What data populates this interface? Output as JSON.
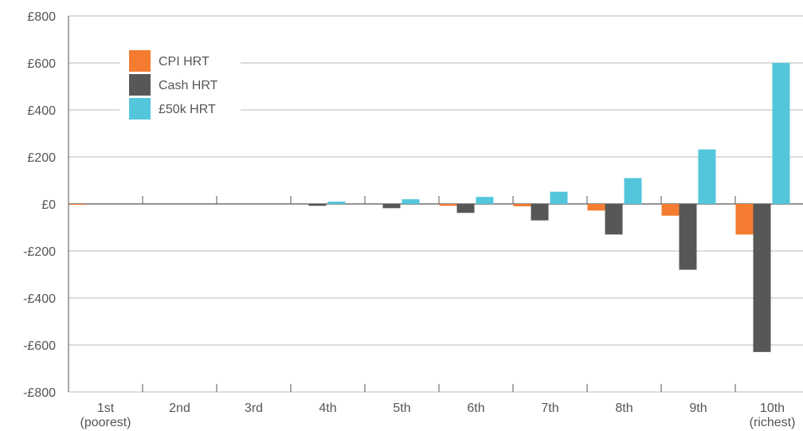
{
  "chart_data": {
    "type": "bar",
    "title": "",
    "xlabel": "",
    "ylabel": "",
    "ylim": [
      -800,
      800
    ],
    "yticks": [
      {
        "value": 800,
        "label": "£800"
      },
      {
        "value": 600,
        "label": "£600"
      },
      {
        "value": 400,
        "label": "£400"
      },
      {
        "value": 200,
        "label": "£200"
      },
      {
        "value": 0,
        "label": "£0"
      },
      {
        "value": -200,
        "label": "-£200"
      },
      {
        "value": -400,
        "label": "-£400"
      },
      {
        "value": -600,
        "label": "-£600"
      },
      {
        "value": -800,
        "label": "-£800"
      }
    ],
    "categories": [
      [
        "1st",
        "(poorest)"
      ],
      [
        "2nd"
      ],
      [
        "3rd"
      ],
      [
        "4th"
      ],
      [
        "5th"
      ],
      [
        "6th"
      ],
      [
        "7th"
      ],
      [
        "8th"
      ],
      [
        "9th"
      ],
      [
        "10th",
        "(richest)"
      ]
    ],
    "series": [
      {
        "name": "CPI HRT",
        "color": "#f47b30",
        "values": [
          -3,
          0,
          0,
          0,
          0,
          -8,
          -10,
          -28,
          -50,
          -130
        ]
      },
      {
        "name": "Cash HRT",
        "color": "#575756",
        "values": [
          0,
          0,
          0,
          -8,
          -18,
          -38,
          -70,
          -130,
          -280,
          -630
        ]
      },
      {
        "name": "£50k HRT",
        "color": "#53c6dc",
        "values": [
          0,
          0,
          0,
          10,
          20,
          30,
          52,
          110,
          232,
          600
        ]
      }
    ],
    "grid": true,
    "legend_position": "top-left"
  }
}
